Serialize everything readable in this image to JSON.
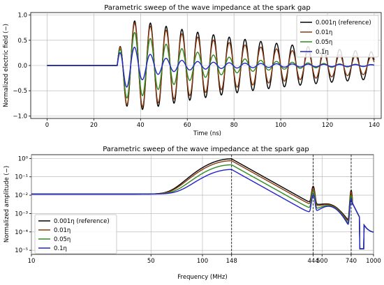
{
  "chart_data": [
    {
      "type": "line",
      "title": "Parametric sweep of the wave impedance at the spark gap",
      "xlabel": "Time (ns)",
      "ylabel": "Normalized electric field (−)",
      "xlim": [
        -7,
        143
      ],
      "ylim": [
        -1.05,
        1.05
      ],
      "xticks": [
        0,
        20,
        40,
        60,
        80,
        100,
        120,
        140
      ],
      "yticks": [
        -1.0,
        -0.5,
        0.0,
        0.5,
        1.0
      ],
      "ytick_labels": [
        "−1.0",
        "−0.5",
        "0.0",
        "0.5",
        "1.0"
      ],
      "grid": true,
      "legend_position": "top-right",
      "series": [
        {
          "name": "0.001η (reference)",
          "color": "#000000",
          "decay": 0.012,
          "start": 30,
          "amp": 1.0
        },
        {
          "name": "0.01η",
          "color": "#8B3A0F",
          "decay": 0.016,
          "start": 30,
          "amp": 0.98
        },
        {
          "name": "0.05η",
          "color": "#2E8B1F",
          "decay": 0.035,
          "start": 30,
          "amp": 0.88
        },
        {
          "name": "0.1η",
          "color": "#2222CC",
          "decay": 0.06,
          "start": 30,
          "amp": 0.75
        }
      ],
      "signal": {
        "period_ns": 6.75,
        "start_ns": 30,
        "end_ns": 140
      }
    },
    {
      "type": "line",
      "title": "Parametric sweep of the wave impedance at the spark gap",
      "xlabel": "Frequency (MHz)",
      "ylabel": "Normalized amplitude (−)",
      "xscale": "log",
      "yscale": "log",
      "xlim": [
        10,
        1000
      ],
      "ylim": [
        6e-06,
        1.6
      ],
      "xticks": [
        10,
        50,
        100,
        148,
        444,
        500,
        740,
        1000
      ],
      "yticks": [
        1e-05,
        0.0001,
        0.001,
        0.01,
        0.1,
        1
      ],
      "ytick_labels": [
        "10⁻⁵",
        "10⁻⁴",
        "10⁻³",
        "10⁻²",
        "10⁻¹",
        "10⁰"
      ],
      "marker_lines": [
        148,
        444,
        740
      ],
      "grid": true,
      "legend_position": "bottom-left",
      "series": [
        {
          "name": "0.001η (reference)",
          "color": "#000000",
          "peak": 0.95
        },
        {
          "name": "0.01η",
          "color": "#8B3A0F",
          "peak": 0.75
        },
        {
          "name": "0.05η",
          "color": "#2E8B1F",
          "peak": 0.45
        },
        {
          "name": "0.1η",
          "color": "#2222CC",
          "peak": 0.25
        }
      ]
    }
  ]
}
